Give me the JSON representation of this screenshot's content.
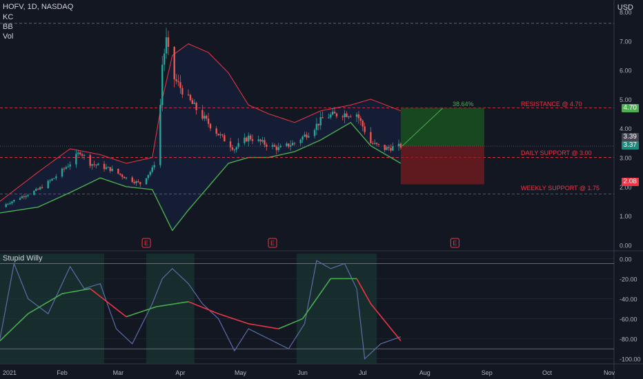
{
  "header": {
    "symbol_line": "HOFV, 1D, NASDAQ",
    "indicators": [
      "KC",
      "BB",
      "Vol"
    ],
    "currency": "USD"
  },
  "oscillator": {
    "title": "Stupid Willy"
  },
  "annotations": {
    "resistance": "RESISTANCE @ 4.70",
    "daily_support": "DAILY SUPPORT @ 3.00",
    "weekly_support": "WEEKLY SUPPORT @ 1.75",
    "gain": "38.64%"
  },
  "price_tags": {
    "target": "4.70",
    "last1": "3.39",
    "last2": "3.37",
    "stop": "2.08"
  },
  "earnings_marker": "E",
  "colors": {
    "bg": "#131722",
    "up": "#26a69a",
    "down": "#ef5350",
    "grid": "#363a45",
    "upper_band": "#f23645",
    "lower_band": "#4caf50",
    "profit": "#1b5e20",
    "loss": "#7f1d1d",
    "osc_line": "#5b6fa8",
    "osc_signal_up": "#4caf50",
    "osc_signal_down": "#f23645"
  },
  "chart_data": [
    {
      "type": "candlestick",
      "title": "HOFV, 1D, NASDAQ",
      "ylabel": "USD",
      "ylim": [
        -0.2,
        8.4
      ],
      "y_ticks": [
        "0.00",
        "1.00",
        "2.00",
        "3.00",
        "4.00",
        "5.00",
        "6.00",
        "7.00",
        "8.00"
      ],
      "x_ticks": [
        "2021",
        "Feb",
        "Mar",
        "Apr",
        "May",
        "Jun",
        "Jul",
        "Aug",
        "Sep",
        "Oct",
        "Nov"
      ],
      "price_path": [
        [
          "2021-01-01",
          1.3
        ],
        [
          "2021-01-10",
          1.6
        ],
        [
          "2021-01-20",
          1.9
        ],
        [
          "2021-01-28",
          2.3
        ],
        [
          "2021-02-05",
          2.8
        ],
        [
          "2021-02-10",
          3.2
        ],
        [
          "2021-02-15",
          2.8
        ],
        [
          "2021-02-25",
          2.6
        ],
        [
          "2021-03-05",
          2.3
        ],
        [
          "2021-03-12",
          2.1
        ],
        [
          "2021-03-18",
          2.6
        ],
        [
          "2021-03-20",
          3.0
        ],
        [
          "2021-03-22",
          4.8
        ],
        [
          "2021-03-23",
          6.2
        ],
        [
          "2021-03-25",
          7.0
        ],
        [
          "2021-03-28",
          5.8
        ],
        [
          "2021-04-05",
          5.0
        ],
        [
          "2021-04-12",
          4.4
        ],
        [
          "2021-04-20",
          3.8
        ],
        [
          "2021-04-28",
          3.3
        ],
        [
          "2021-05-05",
          3.7
        ],
        [
          "2021-05-12",
          3.5
        ],
        [
          "2021-05-20",
          3.3
        ],
        [
          "2021-05-28",
          3.5
        ],
        [
          "2021-06-05",
          3.9
        ],
        [
          "2021-06-12",
          4.4
        ],
        [
          "2021-06-20",
          4.5
        ],
        [
          "2021-06-28",
          4.5
        ],
        [
          "2021-07-05",
          3.5
        ],
        [
          "2021-07-12",
          3.3
        ],
        [
          "2021-07-20",
          3.39
        ]
      ],
      "upper_band_path": [
        [
          "2021-01-01",
          1.5
        ],
        [
          "2021-01-20",
          2.5
        ],
        [
          "2021-02-05",
          3.3
        ],
        [
          "2021-02-20",
          3.1
        ],
        [
          "2021-03-05",
          2.8
        ],
        [
          "2021-03-18",
          3.0
        ],
        [
          "2021-03-23",
          5.0
        ],
        [
          "2021-03-28",
          6.5
        ],
        [
          "2021-04-05",
          6.9
        ],
        [
          "2021-04-15",
          6.6
        ],
        [
          "2021-04-25",
          5.9
        ],
        [
          "2021-05-05",
          4.8
        ],
        [
          "2021-05-15",
          4.5
        ],
        [
          "2021-05-28",
          4.2
        ],
        [
          "2021-06-10",
          4.6
        ],
        [
          "2021-06-25",
          4.8
        ],
        [
          "2021-07-05",
          5.0
        ],
        [
          "2021-07-20",
          4.6
        ]
      ],
      "lower_band_path": [
        [
          "2021-01-01",
          1.1
        ],
        [
          "2021-01-20",
          1.3
        ],
        [
          "2021-02-05",
          1.8
        ],
        [
          "2021-02-20",
          2.3
        ],
        [
          "2021-03-05",
          2.0
        ],
        [
          "2021-03-18",
          1.9
        ],
        [
          "2021-03-23",
          1.2
        ],
        [
          "2021-03-28",
          0.5
        ],
        [
          "2021-04-05",
          1.2
        ],
        [
          "2021-04-15",
          2.0
        ],
        [
          "2021-04-25",
          2.8
        ],
        [
          "2021-05-05",
          3.0
        ],
        [
          "2021-05-15",
          3.0
        ],
        [
          "2021-05-28",
          3.2
        ],
        [
          "2021-06-10",
          3.6
        ],
        [
          "2021-06-25",
          4.2
        ],
        [
          "2021-07-05",
          3.4
        ],
        [
          "2021-07-20",
          2.8
        ]
      ],
      "levels": [
        4.7,
        3.0,
        1.75,
        7.6
      ],
      "position": {
        "entry": 3.39,
        "target": 4.7,
        "stop": 2.08,
        "start": "2021-07-20",
        "end": "2021-08-10"
      },
      "earnings_dates": [
        "2021-03-15",
        "2021-05-17",
        "2021-08-16"
      ]
    },
    {
      "type": "line",
      "title": "Stupid Willy",
      "ylim": [
        -105,
        5
      ],
      "y_ticks": [
        "0.00",
        "-20.00",
        "-40.00",
        "-60.00",
        "-80.00",
        "-100.00"
      ],
      "series": [
        {
          "values": [
            [
              "2021-01-01",
              -80
            ],
            [
              "2021-01-08",
              -5
            ],
            [
              "2021-01-15",
              -40
            ],
            [
              "2021-01-25",
              -55
            ],
            [
              "2021-02-05",
              -8
            ],
            [
              "2021-02-12",
              -30
            ],
            [
              "2021-02-20",
              -25
            ],
            [
              "2021-02-28",
              -70
            ],
            [
              "2021-03-08",
              -85
            ],
            [
              "2021-03-18",
              -45
            ],
            [
              "2021-03-23",
              -20
            ],
            [
              "2021-03-28",
              -10
            ],
            [
              "2021-04-05",
              -25
            ],
            [
              "2021-04-12",
              -45
            ],
            [
              "2021-04-20",
              -60
            ],
            [
              "2021-04-28",
              -92
            ],
            [
              "2021-05-05",
              -70
            ],
            [
              "2021-05-15",
              -80
            ],
            [
              "2021-05-25",
              -90
            ],
            [
              "2021-06-02",
              -65
            ],
            [
              "2021-06-08",
              -2
            ],
            [
              "2021-06-15",
              -10
            ],
            [
              "2021-06-22",
              -5
            ],
            [
              "2021-06-28",
              -30
            ],
            [
              "2021-07-02",
              -100
            ],
            [
              "2021-07-10",
              -85
            ],
            [
              "2021-07-20",
              -78
            ]
          ]
        },
        {
          "values": [
            [
              "2021-01-01",
              -82
            ],
            [
              "2021-01-15",
              -55
            ],
            [
              "2021-02-01",
              -35
            ],
            [
              "2021-02-15",
              -30
            ],
            [
              "2021-03-05",
              -58
            ],
            [
              "2021-03-20",
              -48
            ],
            [
              "2021-04-05",
              -43
            ],
            [
              "2021-04-20",
              -55
            ],
            [
              "2021-05-05",
              -65
            ],
            [
              "2021-05-20",
              -70
            ],
            [
              "2021-06-01",
              -60
            ],
            [
              "2021-06-15",
              -20
            ],
            [
              "2021-06-28",
              -20
            ],
            [
              "2021-07-05",
              -45
            ],
            [
              "2021-07-20",
              -82
            ]
          ]
        }
      ]
    }
  ]
}
